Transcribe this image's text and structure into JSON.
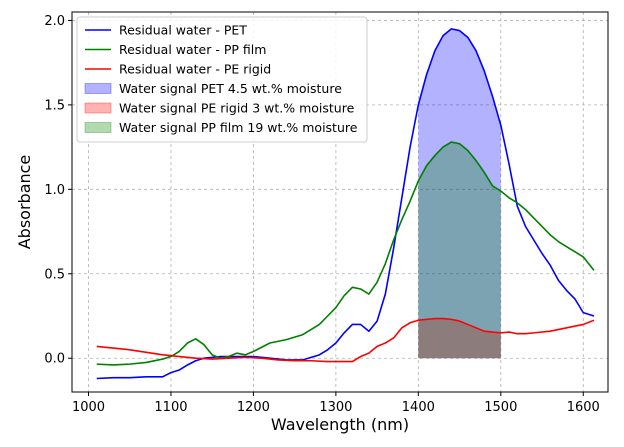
{
  "chart_data": {
    "type": "line",
    "title": "",
    "xlabel": "Wavelength (nm)",
    "ylabel": "Absorbance",
    "xlim": [
      980,
      1630
    ],
    "ylim": [
      -0.2,
      2.05
    ],
    "xticks": [
      1000,
      1100,
      1200,
      1300,
      1400,
      1500,
      1600
    ],
    "yticks": [
      0.0,
      0.5,
      1.0,
      1.5,
      2.0
    ],
    "xtick_labels": [
      "1000",
      "1100",
      "1200",
      "1300",
      "1400",
      "1500",
      "1600"
    ],
    "ytick_labels": [
      "0.0",
      "0.5",
      "1.0",
      "1.5",
      "2.0"
    ],
    "grid": true,
    "legend_position": "top-left",
    "series": [
      {
        "name": "Residual water - PET",
        "color": "#0000ff",
        "x": [
          1010,
          1030,
          1050,
          1070,
          1090,
          1100,
          1110,
          1120,
          1130,
          1140,
          1150,
          1160,
          1180,
          1200,
          1220,
          1240,
          1260,
          1280,
          1290,
          1300,
          1310,
          1320,
          1330,
          1340,
          1350,
          1360,
          1370,
          1380,
          1390,
          1400,
          1410,
          1420,
          1430,
          1440,
          1450,
          1460,
          1470,
          1480,
          1490,
          1500,
          1510,
          1520,
          1530,
          1540,
          1550,
          1560,
          1570,
          1580,
          1590,
          1600,
          1613
        ],
        "y": [
          -0.12,
          -0.115,
          -0.115,
          -0.11,
          -0.11,
          -0.085,
          -0.07,
          -0.04,
          -0.015,
          0.0,
          0.005,
          0.01,
          0.01,
          0.01,
          0.0,
          -0.01,
          -0.01,
          0.02,
          0.05,
          0.09,
          0.15,
          0.2,
          0.2,
          0.16,
          0.22,
          0.38,
          0.65,
          0.95,
          1.25,
          1.5,
          1.68,
          1.82,
          1.91,
          1.95,
          1.94,
          1.9,
          1.82,
          1.7,
          1.55,
          1.38,
          1.15,
          0.9,
          0.78,
          0.7,
          0.62,
          0.55,
          0.46,
          0.4,
          0.35,
          0.27,
          0.25
        ]
      },
      {
        "name": "Residual water - PP film",
        "color": "#008000",
        "x": [
          1010,
          1030,
          1050,
          1070,
          1090,
          1100,
          1110,
          1120,
          1130,
          1140,
          1150,
          1160,
          1170,
          1180,
          1190,
          1200,
          1220,
          1240,
          1260,
          1280,
          1290,
          1300,
          1310,
          1320,
          1330,
          1340,
          1350,
          1360,
          1370,
          1380,
          1390,
          1400,
          1410,
          1420,
          1430,
          1440,
          1450,
          1460,
          1470,
          1480,
          1490,
          1500,
          1510,
          1520,
          1530,
          1540,
          1550,
          1560,
          1570,
          1580,
          1590,
          1600,
          1613
        ],
        "y": [
          -0.035,
          -0.04,
          -0.035,
          -0.025,
          -0.005,
          0.01,
          0.04,
          0.09,
          0.115,
          0.08,
          0.02,
          0.0,
          0.01,
          0.03,
          0.02,
          0.04,
          0.09,
          0.11,
          0.14,
          0.2,
          0.25,
          0.3,
          0.37,
          0.42,
          0.41,
          0.38,
          0.45,
          0.56,
          0.7,
          0.82,
          0.93,
          1.05,
          1.14,
          1.2,
          1.25,
          1.28,
          1.27,
          1.23,
          1.17,
          1.1,
          1.02,
          0.99,
          0.95,
          0.92,
          0.88,
          0.83,
          0.78,
          0.73,
          0.69,
          0.66,
          0.63,
          0.6,
          0.52
        ]
      },
      {
        "name": "Residual water - PE rigid",
        "color": "#ff0000",
        "x": [
          1010,
          1030,
          1050,
          1070,
          1090,
          1110,
          1130,
          1150,
          1170,
          1190,
          1210,
          1230,
          1250,
          1270,
          1290,
          1310,
          1320,
          1330,
          1340,
          1350,
          1360,
          1370,
          1380,
          1390,
          1400,
          1410,
          1420,
          1430,
          1440,
          1450,
          1460,
          1470,
          1480,
          1490,
          1500,
          1510,
          1520,
          1530,
          1540,
          1560,
          1580,
          1600,
          1613
        ],
        "y": [
          0.07,
          0.06,
          0.05,
          0.035,
          0.02,
          0.01,
          0.0,
          -0.005,
          0.0,
          0.005,
          0.0,
          -0.01,
          -0.015,
          -0.015,
          -0.02,
          -0.02,
          -0.02,
          0.01,
          0.03,
          0.07,
          0.09,
          0.12,
          0.18,
          0.21,
          0.225,
          0.23,
          0.235,
          0.235,
          0.23,
          0.22,
          0.2,
          0.18,
          0.16,
          0.155,
          0.15,
          0.155,
          0.145,
          0.145,
          0.15,
          0.16,
          0.18,
          0.2,
          0.225
        ]
      }
    ],
    "areas": [
      {
        "name": "Water signal PET 4.5 wt.% moisture",
        "color": "#0000ff",
        "opacity": 0.3,
        "x": [
          1400,
          1410,
          1420,
          1430,
          1440,
          1450,
          1460,
          1470,
          1480,
          1490,
          1500
        ],
        "y1": [
          1.5,
          1.68,
          1.82,
          1.91,
          1.95,
          1.94,
          1.9,
          1.82,
          1.7,
          1.55,
          1.38
        ],
        "y0": 0.0
      },
      {
        "name": "Water signal PE rigid 3 wt.% moisture",
        "color": "#ff0000",
        "opacity": 0.3,
        "x": [
          1400,
          1410,
          1420,
          1430,
          1440,
          1450,
          1460,
          1470,
          1480,
          1490,
          1500
        ],
        "y1": [
          0.225,
          0.23,
          0.235,
          0.235,
          0.23,
          0.22,
          0.2,
          0.18,
          0.16,
          0.155,
          0.15
        ],
        "y0": 0.0
      },
      {
        "name": "Water signal PP film 19 wt.% moisture",
        "color": "#008000",
        "opacity": 0.3,
        "x": [
          1400,
          1410,
          1420,
          1430,
          1440,
          1450,
          1460,
          1470,
          1480,
          1490,
          1500
        ],
        "y1": [
          1.05,
          1.14,
          1.2,
          1.25,
          1.28,
          1.27,
          1.23,
          1.17,
          1.1,
          1.02,
          0.99
        ],
        "y0": 0.0
      }
    ],
    "legend": [
      {
        "label": "Residual water - PET",
        "kind": "line",
        "color": "#0000ff"
      },
      {
        "label": "Residual water - PP film",
        "kind": "line",
        "color": "#008000"
      },
      {
        "label": "Residual water - PE rigid",
        "kind": "line",
        "color": "#ff0000"
      },
      {
        "label": "Water signal PET 4.5 wt.% moisture",
        "kind": "patch",
        "color": "#0000ff"
      },
      {
        "label": "Water signal PE rigid 3 wt.% moisture",
        "kind": "patch",
        "color": "#ff0000"
      },
      {
        "label": "Water signal PP film 19 wt.% moisture",
        "kind": "patch",
        "color": "#008000"
      }
    ]
  }
}
